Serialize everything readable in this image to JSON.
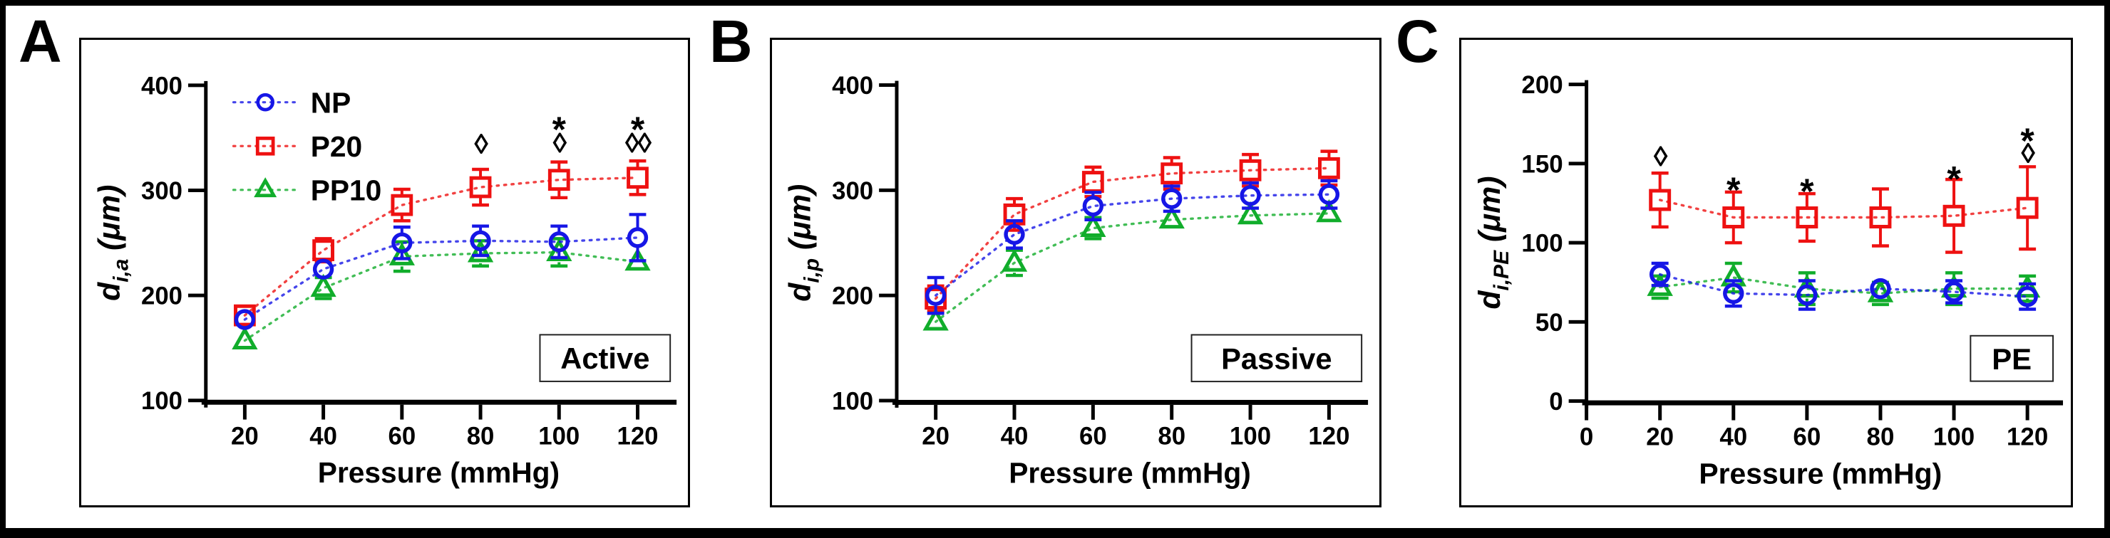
{
  "figure": {
    "background": "#ffffff",
    "border_color": "#000000",
    "axis_color": "#000000"
  },
  "colors": {
    "np_blue": "#1616e6",
    "p20_red": "#ee1111",
    "pp10_green": "#11ad2b",
    "black": "#000000"
  },
  "chart_data": [
    {
      "panel_letter": "A",
      "type": "scatter",
      "inset_label": "Active",
      "xlabel": "Pressure (mmHg)",
      "ylabel_base": "d",
      "ylabel_sub": "i,a",
      "ylabel_unit": " (μm)",
      "x": [
        20,
        40,
        60,
        80,
        100,
        120
      ],
      "x_ticks": [
        20,
        40,
        60,
        80,
        100,
        120
      ],
      "y_ticks": [
        100,
        200,
        300,
        400
      ],
      "ylim": [
        100,
        400
      ],
      "grid": false,
      "legend_position": "top-left",
      "show_legend": true,
      "legend_order": [
        "NP",
        "P20",
        "PP10"
      ],
      "series": [
        {
          "name": "P20",
          "color": "#ee1111",
          "marker": "square",
          "values": [
            181,
            243,
            286,
            303,
            310,
            312
          ],
          "errors": [
            9,
            11,
            15,
            17,
            17,
            16
          ]
        },
        {
          "name": "PP10",
          "color": "#11ad2b",
          "marker": "triangle",
          "values": [
            157,
            207,
            237,
            240,
            241,
            232
          ],
          "errors": [
            7,
            10,
            14,
            12,
            13,
            9
          ]
        },
        {
          "name": "NP",
          "color": "#1616e6",
          "marker": "circle",
          "values": [
            177,
            225,
            250,
            252,
            251,
            255
          ],
          "errors": [
            8,
            9,
            15,
            14,
            15,
            22
          ]
        }
      ],
      "annotations": [
        {
          "x": 80,
          "value": 345,
          "text": "◊"
        },
        {
          "x": 100,
          "value": 368,
          "text": "*"
        },
        {
          "x": 100,
          "value": 346,
          "text": "◊"
        },
        {
          "x": 120,
          "value": 368,
          "text": "*"
        },
        {
          "x": 120,
          "value": 346,
          "text": "◊◊"
        }
      ]
    },
    {
      "panel_letter": "B",
      "type": "scatter",
      "inset_label": "Passive",
      "xlabel": "Pressure (mmHg)",
      "ylabel_base": "d",
      "ylabel_sub": "i,p",
      "ylabel_unit": " (μm)",
      "x": [
        20,
        40,
        60,
        80,
        100,
        120
      ],
      "x_ticks": [
        20,
        40,
        60,
        80,
        100,
        120
      ],
      "y_ticks": [
        100,
        200,
        300,
        400
      ],
      "ylim": [
        100,
        400
      ],
      "grid": false,
      "show_legend": false,
      "legend_order": [],
      "series": [
        {
          "name": "P20",
          "color": "#ee1111",
          "marker": "square",
          "values": [
            197,
            277,
            308,
            316,
            319,
            321
          ],
          "errors": [
            12,
            15,
            14,
            15,
            15,
            16
          ]
        },
        {
          "name": "PP10",
          "color": "#11ad2b",
          "marker": "triangle",
          "values": [
            175,
            231,
            264,
            272,
            276,
            278
          ],
          "errors": [
            9,
            12,
            10,
            8,
            8,
            9
          ]
        },
        {
          "name": "NP",
          "color": "#1616e6",
          "marker": "circle",
          "values": [
            200,
            258,
            285,
            292,
            295,
            296
          ],
          "errors": [
            17,
            13,
            13,
            12,
            12,
            13
          ]
        }
      ],
      "annotations": []
    },
    {
      "panel_letter": "C",
      "type": "scatter",
      "inset_label": "PE",
      "xlabel": "Pressure (mmHg)",
      "ylabel_base": "d",
      "ylabel_sub": "i,PE",
      "ylabel_unit": " (μm)",
      "x": [
        20,
        40,
        60,
        80,
        100,
        120
      ],
      "x_ticks": [
        0,
        20,
        40,
        60,
        80,
        100,
        120
      ],
      "y_ticks": [
        0,
        50,
        100,
        150,
        200
      ],
      "ylim": [
        0,
        200
      ],
      "grid": false,
      "show_legend": false,
      "legend_order": [],
      "series": [
        {
          "name": "P20",
          "color": "#ee1111",
          "marker": "square",
          "values": [
            127,
            116,
            116,
            116,
            117,
            122
          ],
          "errors": [
            17,
            16,
            15,
            18,
            23,
            26
          ]
        },
        {
          "name": "PP10",
          "color": "#11ad2b",
          "marker": "triangle",
          "values": [
            72,
            78,
            71,
            68,
            71,
            71
          ],
          "errors": [
            7,
            9,
            10,
            7,
            10,
            8
          ]
        },
        {
          "name": "NP",
          "color": "#1616e6",
          "marker": "circle",
          "values": [
            80,
            68,
            67,
            71,
            69,
            66
          ],
          "errors": [
            7,
            8,
            9,
            6,
            7,
            8
          ]
        }
      ],
      "annotations": [
        {
          "x": 20,
          "value": 155,
          "text": "◊"
        },
        {
          "x": 40,
          "value": 140,
          "text": "*"
        },
        {
          "x": 60,
          "value": 139,
          "text": "*"
        },
        {
          "x": 100,
          "value": 147,
          "text": "*"
        },
        {
          "x": 120,
          "value": 171,
          "text": "*"
        },
        {
          "x": 120,
          "value": 157,
          "text": "◊"
        }
      ]
    }
  ]
}
